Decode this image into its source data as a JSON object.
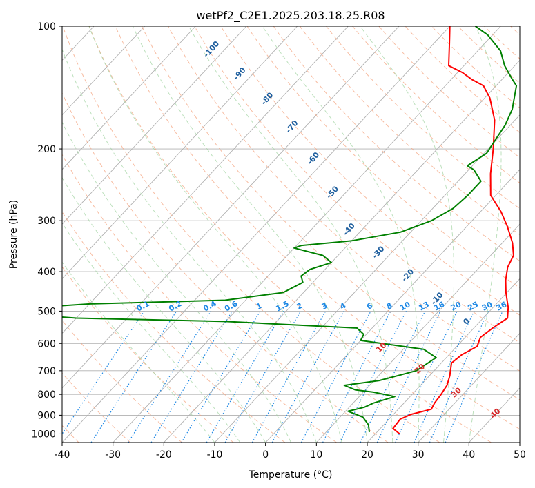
{
  "chart_data": {
    "type": "line",
    "title": "wetPf2_C2E1.2025.203.18.25.R08",
    "xlabel": "Temperature (°C)",
    "ylabel": "Pressure (hPa)",
    "xlim": [
      -40,
      50
    ],
    "ylim": [
      1050,
      100
    ],
    "y_scale": "log",
    "x_ticks": [
      -40,
      -30,
      -20,
      -10,
      0,
      10,
      20,
      30,
      40,
      50
    ],
    "y_ticks": [
      100,
      200,
      300,
      400,
      500,
      600,
      700,
      800,
      900,
      1000
    ],
    "grid": true,
    "skew": true,
    "series": [
      {
        "role": "temperature",
        "color": "#ff0000",
        "points": [
          [
            24.8,
            1000
          ],
          [
            22.5,
            970
          ],
          [
            22.2,
            920
          ],
          [
            23.5,
            895
          ],
          [
            26.5,
            870
          ],
          [
            26.0,
            840
          ],
          [
            25.7,
            800
          ],
          [
            25.2,
            760
          ],
          [
            24.0,
            720
          ],
          [
            22.0,
            670
          ],
          [
            22.5,
            640
          ],
          [
            24.0,
            610
          ],
          [
            23.0,
            580
          ],
          [
            23.7,
            550
          ],
          [
            24.8,
            520
          ],
          [
            23.0,
            490
          ],
          [
            19.8,
            450
          ],
          [
            17.5,
            420
          ],
          [
            15.5,
            390
          ],
          [
            14.5,
            365
          ],
          [
            12.0,
            340
          ],
          [
            8.0,
            310
          ],
          [
            4.0,
            285
          ],
          [
            -1.0,
            260
          ],
          [
            -5.0,
            230
          ],
          [
            -9.0,
            200
          ],
          [
            -14.0,
            170
          ],
          [
            -19.0,
            150
          ],
          [
            -22.5,
            140
          ],
          [
            -26.0,
            135
          ],
          [
            -29.0,
            130
          ],
          [
            -33.0,
            125
          ],
          [
            -37.0,
            110
          ],
          [
            -40.0,
            100
          ]
        ]
      },
      {
        "role": "dewpoint",
        "color": "#008000",
        "points": [
          [
            18.5,
            990
          ],
          [
            17.0,
            950
          ],
          [
            14.5,
            910
          ],
          [
            10.5,
            880
          ],
          [
            13.0,
            860
          ],
          [
            14.0,
            840
          ],
          [
            17.0,
            810
          ],
          [
            12.0,
            790
          ],
          [
            8.0,
            780
          ],
          [
            5.0,
            760
          ],
          [
            11.0,
            740
          ],
          [
            16.5,
            700
          ],
          [
            18.0,
            650
          ],
          [
            14.0,
            620
          ],
          [
            0.0,
            590
          ],
          [
            -0.5,
            570
          ],
          [
            -3.0,
            550
          ],
          [
            -30.0,
            530
          ],
          [
            -60.0,
            520
          ],
          [
            -80.0,
            500
          ],
          [
            -60.0,
            480
          ],
          [
            -34.0,
            470
          ],
          [
            -24.0,
            450
          ],
          [
            -22.0,
            425
          ],
          [
            -23.5,
            410
          ],
          [
            -23.0,
            395
          ],
          [
            -20.0,
            380
          ],
          [
            -23.0,
            365
          ],
          [
            -30.0,
            350
          ],
          [
            -29.0,
            345
          ],
          [
            -20.0,
            336
          ],
          [
            -12.0,
            320
          ],
          [
            -8.0,
            300
          ],
          [
            -6.0,
            280
          ],
          [
            -5.5,
            260
          ],
          [
            -5.5,
            240
          ],
          [
            -9.0,
            225
          ],
          [
            -11.0,
            220
          ],
          [
            -9.5,
            205
          ],
          [
            -10.0,
            195
          ],
          [
            -11.0,
            175
          ],
          [
            -12.5,
            160
          ],
          [
            -16.0,
            140
          ],
          [
            -18.0,
            135
          ],
          [
            -22.0,
            125
          ],
          [
            -25.5,
            115
          ],
          [
            -31.0,
            105
          ],
          [
            -35.0,
            100
          ]
        ]
      }
    ],
    "mixing_ratio_labels": [
      "0.1",
      "0.2",
      "0.4",
      "0.6",
      "1",
      "1.5",
      "2",
      "3",
      "4",
      "6",
      "8",
      "10",
      "13",
      "16",
      "20",
      "25",
      "30",
      "36"
    ],
    "mixing_ratio_values": [
      0.1,
      0.2,
      0.4,
      0.6,
      1,
      1.5,
      2,
      3,
      4,
      6,
      8,
      10,
      13,
      16,
      20,
      25,
      30,
      36
    ],
    "moist_adiabat_labels": [
      "-100",
      "-90",
      "-80",
      "-70",
      "-60",
      "-50",
      "-40",
      "-30",
      "-20",
      "-10",
      "0"
    ],
    "moist_adiabat_values": [
      -100,
      -90,
      -80,
      -70,
      -60,
      -50,
      -40,
      -30,
      -20,
      -10,
      0
    ],
    "dry_adiabat_labels": [
      "10",
      "20",
      "30",
      "40"
    ],
    "dry_adiabat_values": [
      10,
      20,
      30,
      40
    ],
    "colors": {
      "isotherm": "#b0b0b0",
      "isobar": "#b0b0b0",
      "dry_adiabat": "#f4a582",
      "moist_adiabat": "#9fd39f",
      "mixing_ratio": "#1e88e5",
      "dry_label": "#d62728",
      "moist_label": "#1f5f9e",
      "mix_label": "#1e88e5"
    }
  }
}
